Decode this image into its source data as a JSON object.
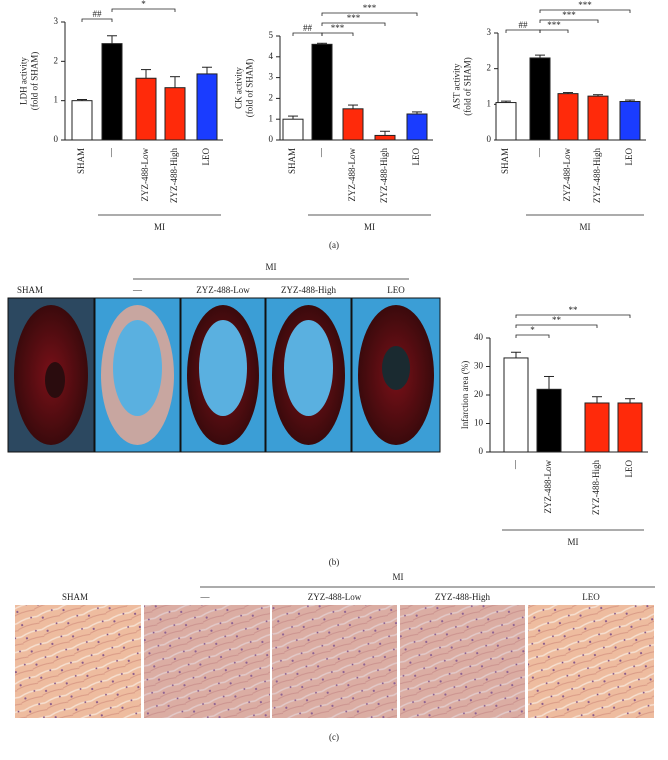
{
  "chart_data": [
    {
      "type": "bar",
      "y_label": [
        "LDH activity",
        "(fold of SHAM)"
      ],
      "categories": [
        "SHAM",
        "—",
        "ZYZ-488-Low",
        "ZYZ-488-High",
        "LEO"
      ],
      "values": [
        1.0,
        2.45,
        1.57,
        1.33,
        1.68
      ],
      "errors": [
        0.03,
        0.2,
        0.22,
        0.28,
        0.17
      ],
      "colors": [
        "#ffffff",
        "#000000",
        "#ff2a0a",
        "#ff2a0a",
        "#1a3cff"
      ],
      "ylim": [
        0,
        3
      ],
      "yticks": [
        0,
        1,
        2,
        3
      ],
      "group": {
        "label": "MI",
        "from": 1,
        "to": 4
      },
      "brackets": [
        {
          "label": "##",
          "from": 0,
          "to": 1
        },
        {
          "label": "*",
          "from": 1,
          "to": 3
        }
      ]
    },
    {
      "type": "bar",
      "y_label": [
        "CK activity",
        "(fold of SHAM)"
      ],
      "categories": [
        "SHAM",
        "—",
        "ZYZ-488-Low",
        "ZYZ-488-High",
        "LEO"
      ],
      "values": [
        1.0,
        4.6,
        1.5,
        0.22,
        1.25
      ],
      "errors": [
        0.15,
        0.05,
        0.18,
        0.2,
        0.1
      ],
      "colors": [
        "#ffffff",
        "#000000",
        "#ff2a0a",
        "#ff2a0a",
        "#1a3cff"
      ],
      "ylim": [
        0,
        5
      ],
      "yticks": [
        0,
        1,
        2,
        3,
        4,
        5
      ],
      "group": {
        "label": "MI",
        "from": 1,
        "to": 4
      },
      "brackets": [
        {
          "label": "##",
          "from": 0,
          "to": 1
        },
        {
          "label": "***",
          "from": 1,
          "to": 2
        },
        {
          "label": "***",
          "from": 1,
          "to": 3
        },
        {
          "label": "***",
          "from": 1,
          "to": 4
        }
      ]
    },
    {
      "type": "bar",
      "y_label": [
        "AST activity",
        "(fold of SHAM)"
      ],
      "categories": [
        "SHAM",
        "—",
        "ZYZ-488-Low",
        "ZYZ-488-High",
        "LEO"
      ],
      "values": [
        1.05,
        2.3,
        1.3,
        1.23,
        1.08
      ],
      "errors": [
        0.04,
        0.08,
        0.03,
        0.04,
        0.04
      ],
      "colors": [
        "#ffffff",
        "#000000",
        "#ff2a0a",
        "#ff2a0a",
        "#1a3cff"
      ],
      "ylim": [
        0,
        3
      ],
      "yticks": [
        0,
        1,
        2,
        3
      ],
      "group": {
        "label": "MI",
        "from": 1,
        "to": 4
      },
      "brackets": [
        {
          "label": "##",
          "from": 0,
          "to": 1
        },
        {
          "label": "***",
          "from": 1,
          "to": 2
        },
        {
          "label": "***",
          "from": 1,
          "to": 3
        },
        {
          "label": "***",
          "from": 1,
          "to": 4
        }
      ]
    },
    {
      "type": "bar",
      "y_label": [
        "Infarction area (%)"
      ],
      "categories": [
        "—",
        "ZYZ-488-Low",
        "ZYZ-488-High",
        "LEO"
      ],
      "values": [
        33,
        22,
        17.2,
        17.2
      ],
      "errors": [
        2,
        4.5,
        2.2,
        1.5
      ],
      "colors": [
        "#ffffff",
        "#000000",
        "#ff2a0a",
        "#ff2a0a"
      ],
      "ylim": [
        0,
        40
      ],
      "yticks": [
        0,
        10,
        20,
        30,
        40
      ],
      "group": {
        "label": "MI",
        "from": 0,
        "to": 3
      },
      "brackets": [
        {
          "label": "*",
          "from": 0,
          "to": 1
        },
        {
          "label": "**",
          "from": 0,
          "to": 2
        },
        {
          "label": "**",
          "from": 0,
          "to": 3
        }
      ]
    }
  ],
  "captions": [
    "(a)",
    "(b)",
    "(c)"
  ],
  "heart_images": {
    "group_label": "MI",
    "labels": [
      "SHAM",
      "—",
      "ZYZ-488-Low",
      "ZYZ-488-High",
      "LEO"
    ]
  },
  "histology_images": {
    "group_label": "MI",
    "labels": [
      "SHAM",
      "—",
      "ZYZ-488-Low",
      "ZYZ-488-High",
      "LEO"
    ]
  }
}
